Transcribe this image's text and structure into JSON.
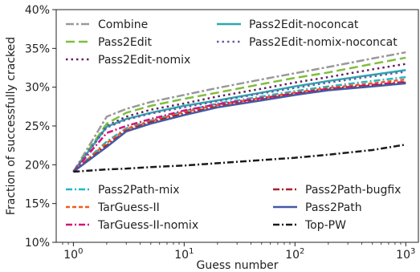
{
  "chart_data": {
    "type": "line",
    "xlabel": "Guess number",
    "ylabel": "Fraction of successfully cracked",
    "xscale": "log",
    "xlim": [
      0.7,
      1300
    ],
    "ylim": [
      10,
      40
    ],
    "xticks": [
      {
        "value": 1,
        "base": "10",
        "exp": "0"
      },
      {
        "value": 10,
        "base": "10",
        "exp": "1"
      },
      {
        "value": 100,
        "base": "10",
        "exp": "2"
      },
      {
        "value": 1000,
        "base": "10",
        "exp": "3"
      }
    ],
    "yticks": [
      {
        "value": 10,
        "label": "10%"
      },
      {
        "value": 15,
        "label": "15%"
      },
      {
        "value": 20,
        "label": "20%"
      },
      {
        "value": 25,
        "label": "25%"
      },
      {
        "value": 30,
        "label": "30%"
      },
      {
        "value": 35,
        "label": "35%"
      },
      {
        "value": 40,
        "label": "40%"
      }
    ],
    "grid": false,
    "x": [
      1,
      2,
      3,
      5,
      10,
      20,
      50,
      100,
      200,
      500,
      1000
    ],
    "series": [
      {
        "name": "Combine",
        "color": "#999999",
        "dash": "10,3,3,3",
        "width": 2.5,
        "legend": "top",
        "values": [
          19.1,
          26.2,
          27.2,
          28.1,
          29.0,
          29.9,
          31.0,
          31.8,
          32.6,
          33.7,
          34.5
        ]
      },
      {
        "name": "Pass2Edit",
        "color": "#7dbf3b",
        "dash": "11,5",
        "width": 2.5,
        "legend": "top",
        "values": [
          19.1,
          25.3,
          26.7,
          27.6,
          28.5,
          29.3,
          30.4,
          31.2,
          31.9,
          33.0,
          33.8
        ]
      },
      {
        "name": "Pass2Edit-nomix",
        "color": "#6a1d5e",
        "dash": "2.5,4",
        "width": 2.5,
        "legend": "top",
        "values": [
          19.1,
          25.0,
          26.2,
          27.1,
          27.9,
          28.8,
          29.8,
          30.6,
          31.3,
          32.3,
          33.0
        ]
      },
      {
        "name": "Pass2Edit-noconcat",
        "color": "#2aa8ad",
        "dash": "",
        "width": 2.5,
        "legend": "top",
        "values": [
          19.1,
          24.9,
          25.9,
          26.7,
          27.6,
          28.3,
          29.3,
          30.1,
          30.8,
          31.6,
          32.2
        ]
      },
      {
        "name": "Pass2Edit-nomix-noconcat",
        "color": "#6b5aa6",
        "dash": "2.5,4",
        "width": 2.5,
        "legend": "top",
        "values": [
          19.1,
          24.8,
          25.8,
          26.6,
          27.4,
          28.2,
          29.2,
          29.9,
          30.6,
          31.4,
          32.0
        ]
      },
      {
        "name": "Pass2Path-mix",
        "color": "#22b8c4",
        "dash": "8,3,2,3",
        "width": 2.5,
        "legend": "bottom",
        "values": [
          19.1,
          23.0,
          24.7,
          25.7,
          26.9,
          27.9,
          28.8,
          29.5,
          30.1,
          30.8,
          31.3
        ]
      },
      {
        "name": "TarGuess-II",
        "color": "#f05a1e",
        "dash": "5,3",
        "width": 2.5,
        "legend": "bottom",
        "values": [
          19.1,
          22.8,
          24.6,
          25.6,
          26.8,
          27.7,
          28.6,
          29.3,
          29.9,
          30.5,
          31.0
        ]
      },
      {
        "name": "TarGuess-II-nomix",
        "color": "#d4147a",
        "dash": "8,3,2,3",
        "width": 2.5,
        "legend": "bottom",
        "values": [
          19.1,
          24.1,
          25.0,
          25.9,
          27.0,
          27.8,
          28.6,
          29.2,
          29.8,
          30.3,
          30.7
        ]
      },
      {
        "name": "Pass2Path-bugfix",
        "color": "#a8202a",
        "dash": "8,3,2,3",
        "width": 2.5,
        "legend": "bottom",
        "values": [
          19.1,
          22.5,
          24.4,
          25.5,
          26.6,
          27.5,
          28.4,
          29.1,
          29.7,
          30.2,
          30.6
        ]
      },
      {
        "name": "Pass2Path",
        "color": "#4459a3",
        "dash": "",
        "width": 2.5,
        "legend": "bottom",
        "values": [
          19.1,
          22.3,
          24.3,
          25.3,
          26.4,
          27.4,
          28.3,
          29.0,
          29.6,
          30.1,
          30.5
        ]
      },
      {
        "name": "Top-PW",
        "color": "#1a1a1a",
        "dash": "8,3,2,3",
        "width": 2.5,
        "legend": "bottom",
        "values": [
          19.1,
          19.4,
          19.5,
          19.7,
          19.9,
          20.2,
          20.6,
          20.9,
          21.3,
          21.9,
          22.6
        ]
      }
    ]
  }
}
